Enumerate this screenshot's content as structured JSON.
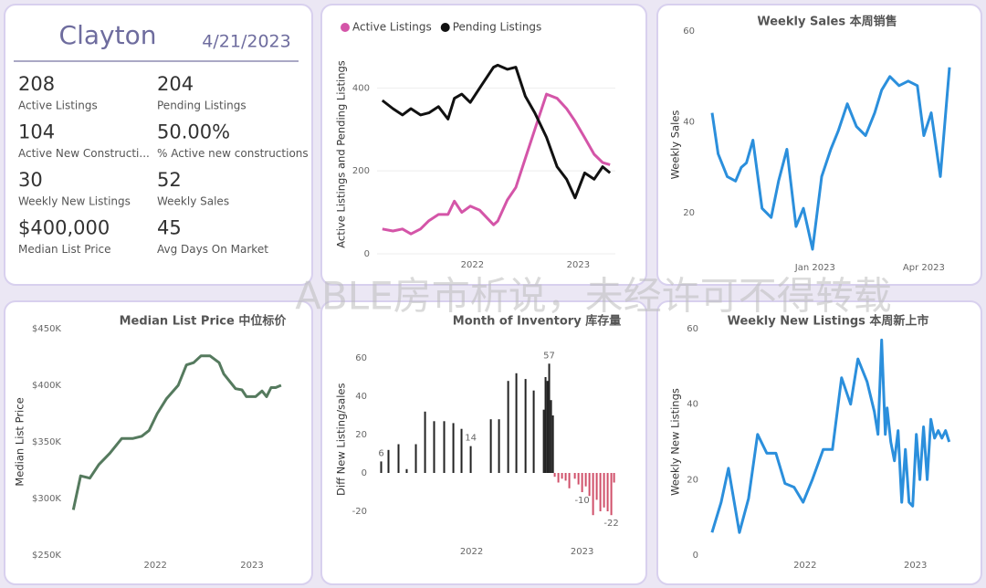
{
  "watermark": "ABLE房市析说，未经许可不得转载",
  "card": {
    "title": "Clayton",
    "date": "4/21/2023",
    "kpis": [
      {
        "value": 208,
        "label": "Active Listings"
      },
      {
        "value": 204,
        "label": "Pending Listings"
      },
      {
        "value": 104,
        "label": "Active New Constructi..."
      },
      {
        "value": "50.00%",
        "label": "% Active new constructions"
      },
      {
        "value": 30,
        "label": "Weekly New Listings"
      },
      {
        "value": 52,
        "label": "Weekly Sales"
      },
      {
        "value": "$400,000",
        "label": "Median List Price"
      },
      {
        "value": 45,
        "label": "Avg Days On Market"
      }
    ]
  },
  "chart_data": [
    {
      "type": "line",
      "ylabel": "Active Listings and Pending Listings",
      "legend": "top-left",
      "grid": true,
      "x": [
        2021.15,
        2021.25,
        2021.34,
        2021.42,
        2021.51,
        2021.59,
        2021.68,
        2021.77,
        2021.83,
        2021.9,
        2021.98,
        2022.07,
        2022.2,
        2022.24,
        2022.33,
        2022.41,
        2022.5,
        2022.59,
        2022.7,
        2022.8,
        2022.89,
        2022.97,
        2023.06,
        2023.15,
        2023.23,
        2023.3
      ],
      "series": [
        {
          "name": "Active Listings",
          "color": "#d455a8",
          "values": [
            60,
            55,
            60,
            48,
            60,
            80,
            95,
            95,
            127,
            100,
            115,
            105,
            70,
            79,
            130,
            160,
            230,
            300,
            385,
            375,
            350,
            320,
            280,
            240,
            220,
            215
          ]
        },
        {
          "name": "Pending Listings",
          "color": "#111111",
          "values": [
            370,
            350,
            335,
            350,
            335,
            340,
            355,
            325,
            375,
            385,
            365,
            400,
            450,
            455,
            445,
            450,
            380,
            340,
            281,
            210,
            180,
            135,
            195,
            180,
            210,
            195
          ]
        }
      ],
      "xlim": [
        2021.1,
        2023.35
      ],
      "xticks": [
        2022,
        2023
      ],
      "ylim": [
        0,
        480
      ],
      "yticks": [
        0,
        200,
        400
      ]
    },
    {
      "type": "line",
      "title": "Weekly Sales 本周销售",
      "ylabel": "Weekly Sales",
      "grid": false,
      "x": [
        2022.763,
        2022.777,
        2022.798,
        2022.817,
        2022.83,
        2022.842,
        2022.857,
        2022.878,
        2022.899,
        2022.916,
        2022.935,
        2022.956,
        2022.973,
        2022.994,
        2023.015,
        2023.036,
        2023.053,
        2023.074,
        2023.095,
        2023.116,
        2023.137,
        2023.153,
        2023.172,
        2023.193,
        2023.214,
        2023.235,
        2023.25,
        2023.267,
        2023.288,
        2023.309
      ],
      "series": [
        {
          "name": "Weekly Sales",
          "color": "#2b8fdc",
          "values": [
            42,
            33,
            28,
            27,
            30,
            31,
            36,
            21,
            19,
            27,
            34,
            17,
            21,
            12,
            28,
            34,
            38,
            44,
            39,
            37,
            42,
            47,
            50,
            48,
            49,
            48,
            37,
            42,
            28,
            52
          ]
        }
      ],
      "xlim": [
        2022.74,
        2023.33
      ],
      "xticks": [
        {
          "value": 2023.0,
          "label": "Jan 2023"
        },
        {
          "value": 2023.25,
          "label": "Apr 2023"
        }
      ],
      "ylim": [
        10,
        60
      ],
      "yticks": [
        20,
        40,
        60
      ]
    },
    {
      "type": "line",
      "title": "Median List Price  中位标价",
      "ylabel": "Median List Price",
      "grid": false,
      "x": [
        2021.15,
        2021.226,
        2021.321,
        2021.415,
        2021.528,
        2021.651,
        2021.764,
        2021.858,
        2021.934,
        2022.019,
        2022.113,
        2022.236,
        2022.321,
        2022.396,
        2022.472,
        2022.566,
        2022.66,
        2022.708,
        2022.755,
        2022.83,
        2022.896,
        2022.943,
        2023.038,
        2023.104,
        2023.151,
        2023.198,
        2023.245,
        2023.302
      ],
      "series": [
        {
          "name": "Median List Price",
          "color": "#557a5e",
          "values": [
            290000,
            320000,
            318000,
            330000,
            340000,
            353000,
            353000,
            355000,
            360000,
            375000,
            388000,
            400000,
            418000,
            420000,
            426000,
            426000,
            420000,
            410000,
            405000,
            397000,
            396000,
            390000,
            390000,
            395000,
            390000,
            398000,
            398000,
            400000
          ]
        }
      ],
      "xlim": [
        2021.1,
        2023.35
      ],
      "xticks": [
        2022,
        2023
      ],
      "ylim": [
        250000,
        450000
      ],
      "yticks": [
        {
          "value": 250000,
          "label": "$250K"
        },
        {
          "value": 300000,
          "label": "$300K"
        },
        {
          "value": 350000,
          "label": "$350K"
        },
        {
          "value": 400000,
          "label": "$400K"
        },
        {
          "value": 450000,
          "label": "$450K"
        }
      ]
    },
    {
      "type": "bar",
      "title": "Month of Inventory 库存量",
      "ylabel": "Diff New Listing/sales",
      "grid": false,
      "color": "#222222",
      "negative_color": "#d0506a",
      "x": [
        2021.182,
        2021.248,
        2021.339,
        2021.413,
        2021.496,
        2021.579,
        2021.661,
        2021.752,
        2021.835,
        2021.909,
        2021.992,
        2022.174,
        2022.248,
        2022.331,
        2022.405,
        2022.488,
        2022.562,
        2022.653,
        2022.669,
        2022.686,
        2022.702,
        2022.719,
        2022.736,
        2022.752,
        2022.785,
        2022.818,
        2022.851,
        2022.884,
        2022.934,
        2022.967,
        2023.0,
        2023.033,
        2023.066,
        2023.099,
        2023.132,
        2023.165,
        2023.198,
        2023.231,
        2023.264,
        2023.289
      ],
      "values": [
        6,
        12,
        15,
        2,
        15,
        32,
        27,
        27,
        26,
        23,
        14,
        28,
        28,
        48,
        52,
        49,
        43,
        33,
        50,
        48,
        57,
        38,
        30,
        -2,
        -5,
        -3,
        -4,
        -8,
        -3,
        -6,
        -10,
        -7,
        -12,
        -22,
        -14,
        -20,
        -18,
        -20,
        -22,
        -5
      ],
      "value_labels": [
        "6",
        null,
        null,
        null,
        null,
        null,
        null,
        null,
        null,
        null,
        "14",
        null,
        null,
        null,
        null,
        null,
        null,
        null,
        null,
        null,
        "57",
        null,
        null,
        null,
        null,
        null,
        null,
        null,
        null,
        null,
        "-10",
        null,
        null,
        null,
        null,
        null,
        null,
        null,
        "-22",
        null
      ],
      "xlim": [
        2021.12,
        2023.35
      ],
      "xticks": [
        2022,
        2023
      ],
      "ylim": [
        -30,
        65
      ],
      "yticks": [
        -20,
        0,
        20,
        40,
        60
      ]
    },
    {
      "type": "line",
      "title": "Weekly New Listings  本周新上市",
      "ylabel": "Weekly New Listings",
      "grid": false,
      "x": [
        2021.157,
        2021.24,
        2021.306,
        2021.405,
        2021.488,
        2021.57,
        2021.653,
        2021.736,
        2021.818,
        2021.901,
        2021.983,
        2022.066,
        2022.165,
        2022.248,
        2022.331,
        2022.413,
        2022.479,
        2022.562,
        2022.628,
        2022.661,
        2022.694,
        2022.727,
        2022.744,
        2022.777,
        2022.81,
        2022.843,
        2022.876,
        2022.909,
        2022.942,
        2022.975,
        2023.008,
        2023.041,
        2023.074,
        2023.107,
        2023.14,
        2023.174,
        2023.207,
        2023.24,
        2023.273,
        2023.306
      ],
      "series": [
        {
          "name": "Weekly New Listings",
          "color": "#2b8fdc",
          "values": [
            6,
            14,
            23,
            6,
            15,
            32,
            27,
            27,
            19,
            18,
            14,
            20,
            28,
            28,
            47,
            40,
            52,
            46,
            38,
            32,
            57,
            32,
            39,
            30,
            25,
            33,
            14,
            28,
            14,
            13,
            32,
            20,
            34,
            20,
            36,
            31,
            33,
            31,
            33,
            30
          ]
        }
      ],
      "xlim": [
        2021.1,
        2023.35
      ],
      "xticks": [
        2022,
        2023
      ],
      "ylim": [
        0,
        60
      ],
      "yticks": [
        0,
        20,
        40,
        60
      ]
    }
  ]
}
